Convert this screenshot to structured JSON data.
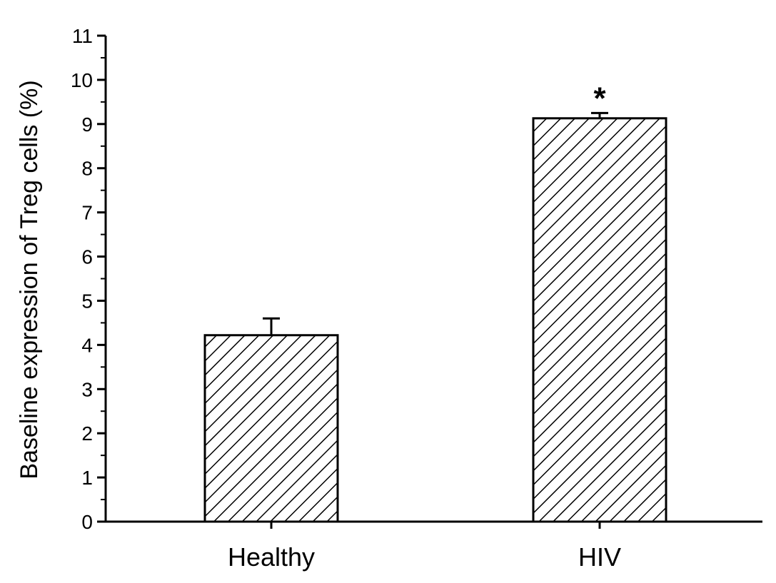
{
  "chart_data": {
    "type": "bar",
    "categories": [
      "Healthy",
      "HIV"
    ],
    "values": [
      4.22,
      9.13
    ],
    "errors": [
      0.38,
      0.12
    ],
    "significance": [
      "",
      "*"
    ],
    "title": "",
    "xlabel": "",
    "ylabel": "Baseline expression of Treg cells (%)",
    "ylim": [
      0,
      11
    ],
    "yticks": [
      0,
      1,
      2,
      3,
      4,
      5,
      6,
      7,
      8,
      9,
      10,
      11
    ],
    "bar_pattern": "diagonal-hatch",
    "grid": false,
    "legend": "none",
    "colors": {
      "bar_fill": "#ffffff",
      "hatch": "#000000",
      "axis": "#000000"
    }
  }
}
